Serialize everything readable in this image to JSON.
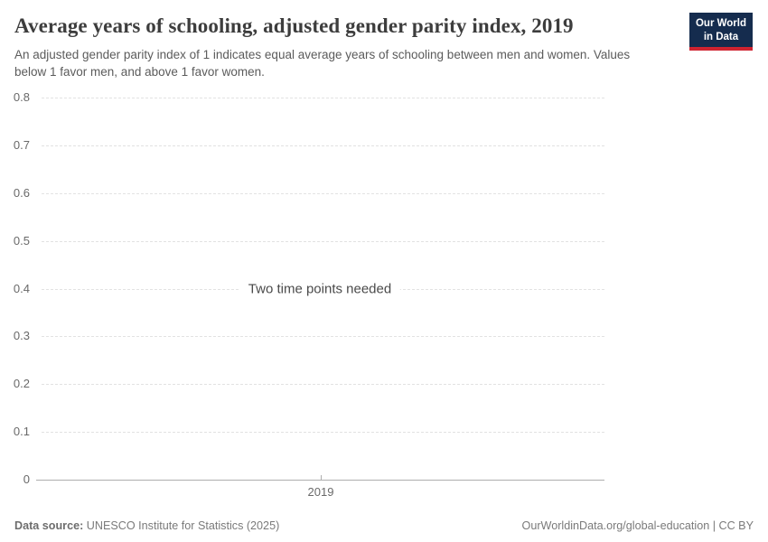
{
  "header": {
    "title": "Average years of schooling, adjusted gender parity index, 2019",
    "subtitle": "An adjusted gender parity index of 1 indicates equal average years of schooling between men and women. Values below 1 favor men, and above 1 favor women.",
    "logo": {
      "line1": "Our World",
      "line2": "in Data"
    }
  },
  "chart_data": {
    "type": "line",
    "title": "Average years of schooling, adjusted gender parity index, 2019",
    "empty": true,
    "message": "Two time points needed",
    "series": [],
    "x_axis": {
      "ticks": [
        "2019"
      ]
    },
    "y_axis": {
      "min": 0,
      "max": 0.8,
      "ticks": [
        0,
        0.1,
        0.2,
        0.3,
        0.4,
        0.5,
        0.6,
        0.7,
        0.8
      ]
    },
    "grid": true,
    "legend": false
  },
  "footer": {
    "source_label": "Data source:",
    "source_value": "UNESCO Institute for Statistics (2025)",
    "credit": "OurWorldinData.org/global-education | CC BY"
  },
  "colors": {
    "logo_background": "#152c4e",
    "logo_stripe": "#cf2330",
    "gridline": "#e2e2e2",
    "axis": "#aeaeae",
    "title_text": "#3d3d3d",
    "subtitle_text": "#5b5b5b"
  }
}
